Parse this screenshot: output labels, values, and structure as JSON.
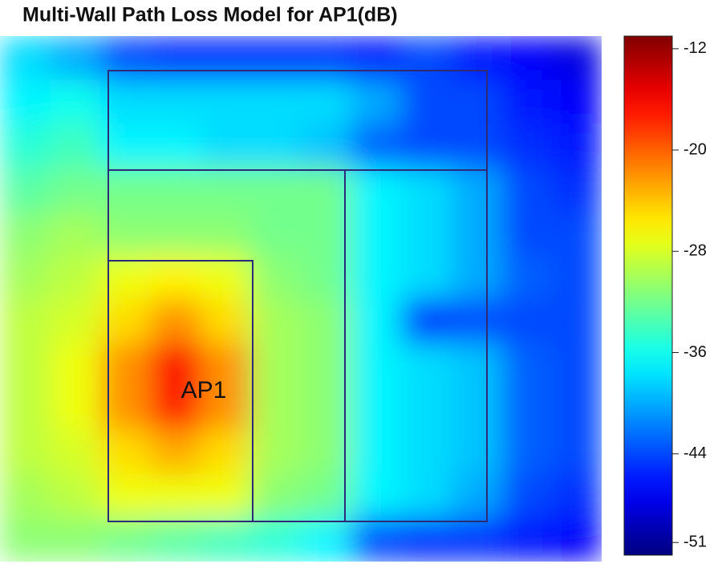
{
  "chart_data": {
    "type": "heatmap",
    "title": "Multi-Wall Path Loss Model for AP1(dB)",
    "annotation": "AP1",
    "colormap": "jet",
    "clim": [
      -11,
      -52
    ],
    "cticks": [
      -12,
      -20,
      -28,
      -36,
      -44,
      -51
    ],
    "z": [
      [
        -38,
        -40,
        -44,
        -45,
        -45,
        -45,
        -45,
        -46,
        -44,
        -46,
        -47,
        -48
      ],
      [
        -37,
        -36,
        -38,
        -38,
        -38,
        -38,
        -38,
        -40,
        -44,
        -44,
        -46,
        -47
      ],
      [
        -35,
        -34,
        -37,
        -37,
        -38,
        -38,
        -39,
        -43,
        -44,
        -44,
        -45,
        -46
      ],
      [
        -33,
        -32,
        -32,
        -32,
        -32,
        -32,
        -32,
        -37,
        -38,
        -40,
        -44,
        -45
      ],
      [
        -31,
        -30,
        -31,
        -31,
        -31,
        -32,
        -32,
        -37,
        -38,
        -40,
        -44,
        -44
      ],
      [
        -30,
        -29,
        -27,
        -26,
        -27,
        -31,
        -32,
        -37,
        -38,
        -40,
        -43,
        -44
      ],
      [
        -29,
        -28,
        -25,
        -22,
        -25,
        -30,
        -31,
        -37,
        -45,
        -44,
        -44,
        -44
      ],
      [
        -29,
        -27,
        -22,
        -16,
        -22,
        -30,
        -31,
        -37,
        -38,
        -39,
        -43,
        -44
      ],
      [
        -29,
        -27,
        -22,
        -17,
        -22,
        -30,
        -31,
        -37,
        -38,
        -39,
        -43,
        -44
      ],
      [
        -29,
        -28,
        -25,
        -23,
        -25,
        -30,
        -31,
        -37,
        -38,
        -39,
        -43,
        -44
      ],
      [
        -30,
        -29,
        -27,
        -27,
        -27,
        -31,
        -32,
        -37,
        -38,
        -40,
        -44,
        -45
      ],
      [
        -31,
        -31,
        -32,
        -33,
        -34,
        -35,
        -37,
        -44,
        -45,
        -45,
        -46,
        -47
      ]
    ]
  }
}
